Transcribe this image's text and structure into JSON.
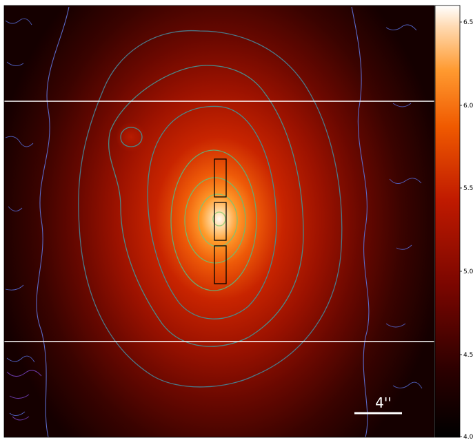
{
  "image": {
    "colormap": "gist_heat",
    "colors": {
      "background": "#000000",
      "galaxy_core": "#fff8f0",
      "galaxy_mid": "#e04800",
      "galaxy_outer": "#8a0c00",
      "contour_outer": "#5060c0",
      "contour_mid": "#4a8a8a",
      "contour_inner": "#70b860",
      "slit_boxes": "#000000",
      "guide_lines": "#ffffff"
    }
  },
  "colorbar": {
    "ticks": [
      "6.5",
      "6.0",
      "5.5",
      "5.0",
      "4.5",
      "4.0"
    ]
  },
  "scalebar": {
    "label": "4''"
  }
}
